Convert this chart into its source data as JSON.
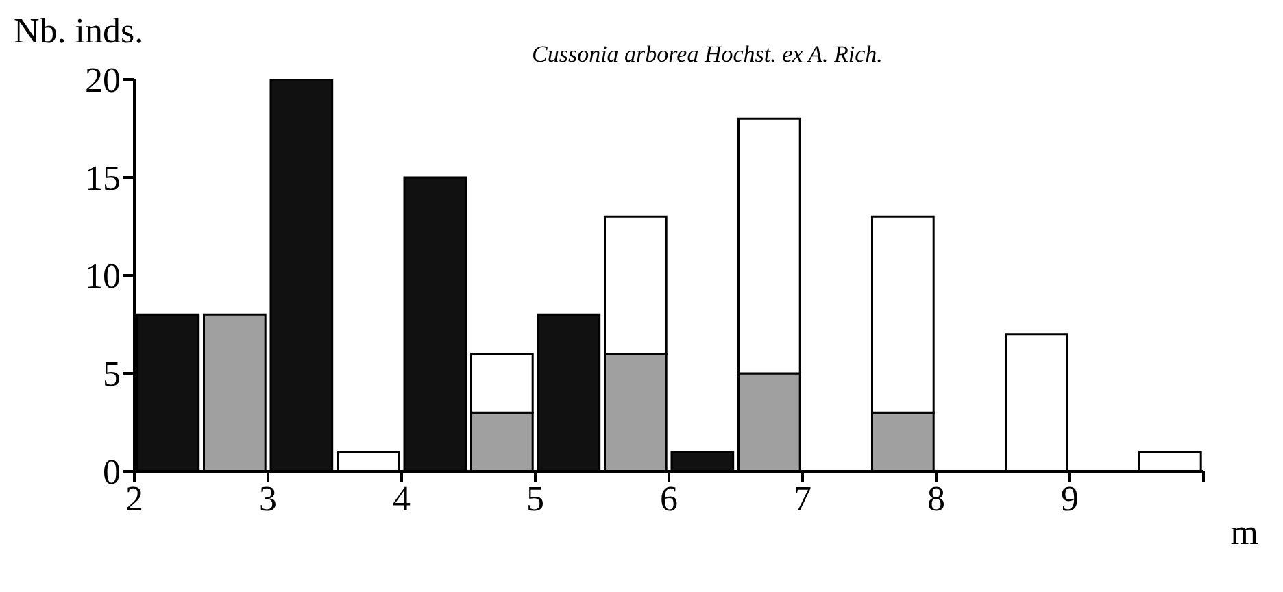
{
  "chart_data": {
    "type": "bar",
    "title": "Cussonia arborea Hochst. ex A. Rich.",
    "xlabel": "m",
    "ylabel": "Nb. inds.",
    "x": [
      2.25,
      2.75,
      3.25,
      3.75,
      4.25,
      4.75,
      5.25,
      5.75,
      6.25,
      6.75,
      7.25,
      7.75,
      8.25,
      8.75,
      9.25,
      9.75
    ],
    "series": [
      {
        "color": "#111111",
        "values": [
          8,
          null,
          20,
          null,
          15,
          null,
          8,
          null,
          1,
          null,
          null,
          null,
          null,
          null,
          null,
          null
        ]
      },
      {
        "color": "#a0a0a0",
        "values": [
          null,
          8,
          null,
          0,
          null,
          3,
          null,
          6,
          null,
          5,
          null,
          3,
          null,
          0,
          null,
          0
        ]
      },
      {
        "color": "#ffffff",
        "values": [
          null,
          0,
          null,
          1,
          null,
          3,
          null,
          7,
          null,
          13,
          null,
          10,
          null,
          7,
          null,
          1
        ]
      }
    ],
    "stacked": true,
    "xlim": [
      2,
      10
    ],
    "xticks": [
      2,
      3,
      4,
      5,
      6,
      7,
      8,
      9,
      {
        "value": 10,
        "label": null
      }
    ],
    "ylim": [
      0,
      20
    ],
    "yticks": [
      0,
      5,
      10,
      15,
      20
    ]
  }
}
